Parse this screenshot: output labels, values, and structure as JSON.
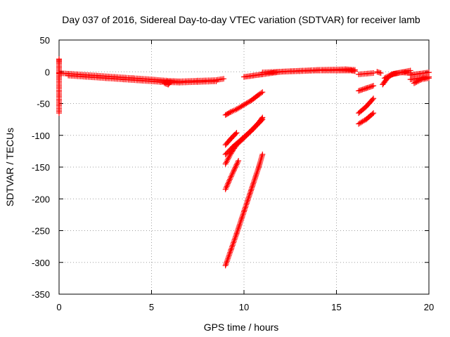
{
  "chart_data": {
    "type": "scatter",
    "title": "Day 037 of 2016, Sidereal Day-to-day VTEC variation (SDTVAR) for receiver lamb",
    "xlabel": "GPS time / hours",
    "ylabel": "SDTVAR / TECUs",
    "xlim": [
      0,
      20
    ],
    "ylim": [
      -350,
      50
    ],
    "xticks": [
      0,
      5,
      10,
      15,
      20
    ],
    "yticks": [
      50,
      0,
      -50,
      -100,
      -150,
      -200,
      -250,
      -300,
      -350
    ],
    "xtick_labels": [
      "0",
      "5",
      "10",
      "15",
      "20"
    ],
    "ytick_labels": [
      "50",
      "0",
      "-50",
      "-100",
      "-150",
      "-200",
      "-250",
      "-300",
      "-350"
    ],
    "grid": true,
    "marker": "+",
    "color": "#ff0000",
    "series": [
      {
        "x": [
          0,
          0.5,
          1,
          2,
          3,
          4,
          5,
          5.8,
          6.5,
          7.5,
          8.5,
          8.9
        ],
        "y": [
          -2,
          -3,
          -4,
          -6,
          -8,
          -10,
          -12,
          -14,
          -15,
          -14,
          -13,
          -11
        ]
      },
      {
        "x": [
          0.5,
          1.5,
          2.5,
          3.5,
          4.5,
          5.5,
          6.5,
          7.5,
          8.5
        ],
        "y": [
          -6,
          -8,
          -10,
          -12,
          -14,
          -16,
          -17,
          -16,
          -15
        ]
      },
      {
        "x": [
          5.7,
          5.9,
          6.0
        ],
        "y": [
          -18,
          -20,
          -17
        ]
      },
      {
        "x": [
          9.0,
          9.3,
          9.6,
          10.0,
          10.4,
          10.8,
          11.0
        ],
        "y": [
          -68,
          -63,
          -59,
          -52,
          -45,
          -36,
          -32
        ]
      },
      {
        "x": [
          9.0,
          9.3,
          9.6
        ],
        "y": [
          -115,
          -105,
          -96
        ]
      },
      {
        "x": [
          9.0,
          9.3,
          9.6,
          10.0,
          10.5,
          11.0
        ],
        "y": [
          -145,
          -128,
          -115,
          -104,
          -90,
          -75
        ]
      },
      {
        "x": [
          9.0,
          9.4,
          9.8,
          10.3,
          10.8,
          11.0
        ],
        "y": [
          -130,
          -118,
          -108,
          -95,
          -80,
          -72
        ]
      },
      {
        "x": [
          9.0,
          9.3,
          9.7
        ],
        "y": [
          -185,
          -165,
          -140
        ]
      },
      {
        "x": [
          9.0,
          9.3,
          9.6,
          10.0,
          10.4,
          10.8,
          11.0
        ],
        "y": [
          -305,
          -280,
          -255,
          -220,
          -185,
          -150,
          -130
        ]
      },
      {
        "x": [
          10.0,
          10.5,
          11.0,
          12.0,
          13.0,
          14.0,
          15.0,
          15.8,
          16.0
        ],
        "y": [
          -8,
          -6,
          -4,
          0,
          1,
          2,
          2,
          2,
          1
        ]
      },
      {
        "x": [
          11.0,
          12.5,
          14.0,
          15.5,
          16.0
        ],
        "y": [
          -1,
          1,
          3,
          4,
          3
        ]
      },
      {
        "x": [
          16.2,
          16.6,
          17.0
        ],
        "y": [
          -4,
          -3,
          -2
        ]
      },
      {
        "x": [
          16.2,
          16.6,
          17.0
        ],
        "y": [
          -30,
          -26,
          -22
        ]
      },
      {
        "x": [
          16.2,
          16.6,
          17.0
        ],
        "y": [
          -65,
          -55,
          -42
        ]
      },
      {
        "x": [
          16.2,
          16.6,
          17.0
        ],
        "y": [
          -82,
          -75,
          -65
        ]
      },
      {
        "x": [
          17.5,
          17.8,
          18.1,
          18.5,
          19.0
        ],
        "y": [
          -20,
          -8,
          -3,
          -1,
          -2
        ]
      },
      {
        "x": [
          17.2,
          17.4
        ],
        "y": [
          0,
          -2
        ]
      },
      {
        "x": [
          17.6,
          18.0,
          18.5,
          19.0
        ],
        "y": [
          -10,
          -4,
          -1,
          2
        ]
      },
      {
        "x": [
          19.0,
          19.5,
          20.0
        ],
        "y": [
          -12,
          -10,
          -8
        ]
      },
      {
        "x": [
          19.0,
          19.5,
          20.0
        ],
        "y": [
          -5,
          -3,
          -1
        ]
      },
      {
        "x": [
          19.2,
          19.6,
          20.0
        ],
        "y": [
          -18,
          -12,
          -10
        ]
      },
      {
        "x": [
          0,
          0,
          0,
          0
        ],
        "y": [
          -65,
          -10,
          15,
          20
        ]
      }
    ]
  }
}
